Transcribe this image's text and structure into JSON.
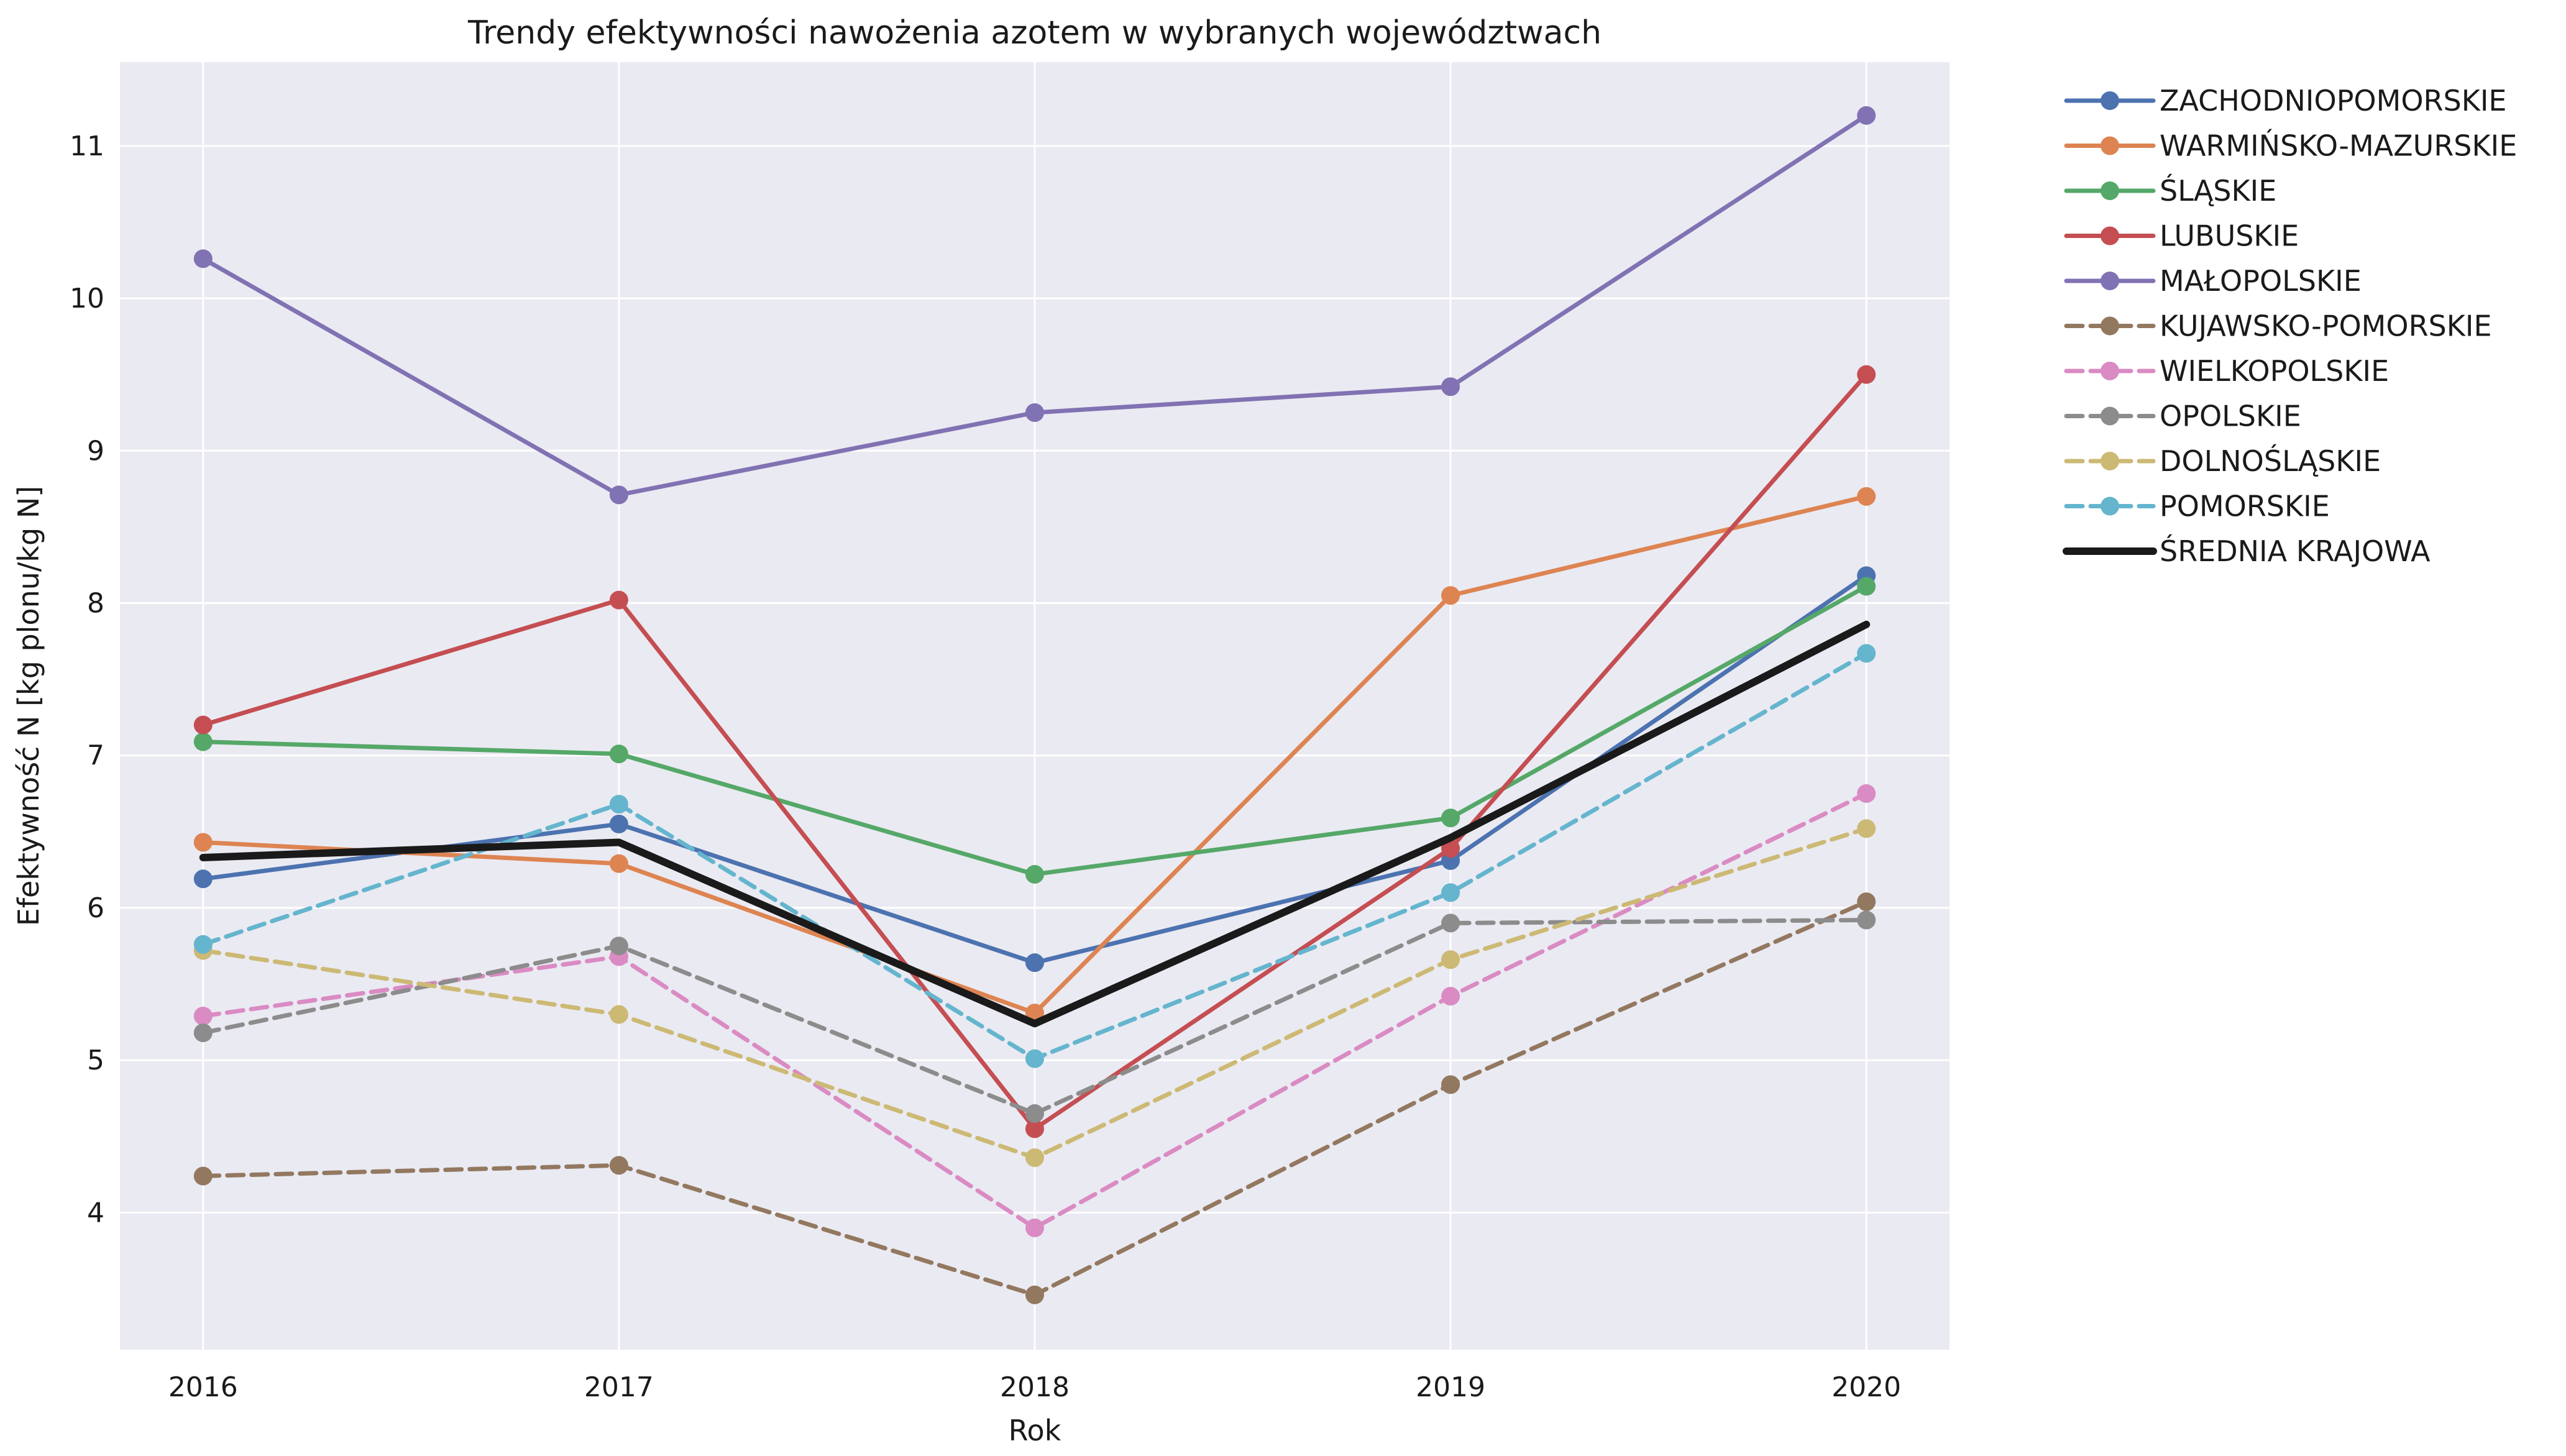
{
  "chart_data": {
    "type": "line",
    "title": "Trendy efektywności nawożenia azotem w wybranych województwach",
    "xlabel": "Rok",
    "ylabel": "Efektywność N [kg plonu/kg N]",
    "x": [
      2016,
      2017,
      2018,
      2019,
      2020
    ],
    "xlim": [
      2015.8,
      2020.2
    ],
    "ylim": [
      3.1,
      11.55
    ],
    "yticks": [
      4,
      5,
      6,
      7,
      8,
      9,
      10,
      11
    ],
    "grid": true,
    "legend_position": "outside-right-top",
    "series": [
      {
        "name": "ZACHODNIOPOMORSKIE",
        "values": [
          6.19,
          6.55,
          5.64,
          6.31,
          8.18
        ],
        "color": "#4c72b0",
        "dash": "solid",
        "width": 7
      },
      {
        "name": "WARMIŃSKO-MAZURSKIE",
        "values": [
          6.43,
          6.29,
          5.31,
          8.05,
          8.7
        ],
        "color": "#dd8452",
        "dash": "solid",
        "width": 7
      },
      {
        "name": "ŚLĄSKIE",
        "values": [
          7.09,
          7.01,
          6.22,
          6.59,
          8.11
        ],
        "color": "#55a868",
        "dash": "solid",
        "width": 7
      },
      {
        "name": "LUBUSKIE",
        "values": [
          7.2,
          8.02,
          4.55,
          6.39,
          9.5
        ],
        "color": "#c44e52",
        "dash": "solid",
        "width": 7
      },
      {
        "name": "MAŁOPOLSKIE",
        "values": [
          10.26,
          8.71,
          9.25,
          9.42,
          11.2
        ],
        "color": "#8172b3",
        "dash": "solid",
        "width": 7
      },
      {
        "name": "KUJAWSKO-POMORSKIE",
        "values": [
          4.24,
          4.31,
          3.46,
          4.84,
          6.04
        ],
        "color": "#937860",
        "dash": "dashed",
        "width": 7
      },
      {
        "name": "WIELKOPOLSKIE",
        "values": [
          5.29,
          5.68,
          3.9,
          5.42,
          6.75
        ],
        "color": "#da8bc3",
        "dash": "dashed",
        "width": 7
      },
      {
        "name": "OPOLSKIE",
        "values": [
          5.18,
          5.75,
          4.65,
          5.9,
          5.92
        ],
        "color": "#8c8c8c",
        "dash": "dashed",
        "width": 7
      },
      {
        "name": "DOLNOŚLĄSKIE",
        "values": [
          5.72,
          5.3,
          4.36,
          5.66,
          6.52
        ],
        "color": "#ccb974",
        "dash": "dashed",
        "width": 7
      },
      {
        "name": "POMORSKIE",
        "values": [
          5.76,
          6.68,
          5.01,
          6.1,
          7.67
        ],
        "color": "#64b5cd",
        "dash": "dashed",
        "width": 7
      },
      {
        "name": "ŚREDNIA KRAJOWA",
        "values": [
          6.33,
          6.43,
          5.24,
          6.46,
          7.86
        ],
        "color": "#1a1a1a",
        "dash": "solid",
        "width": 12,
        "markers": false
      }
    ]
  }
}
